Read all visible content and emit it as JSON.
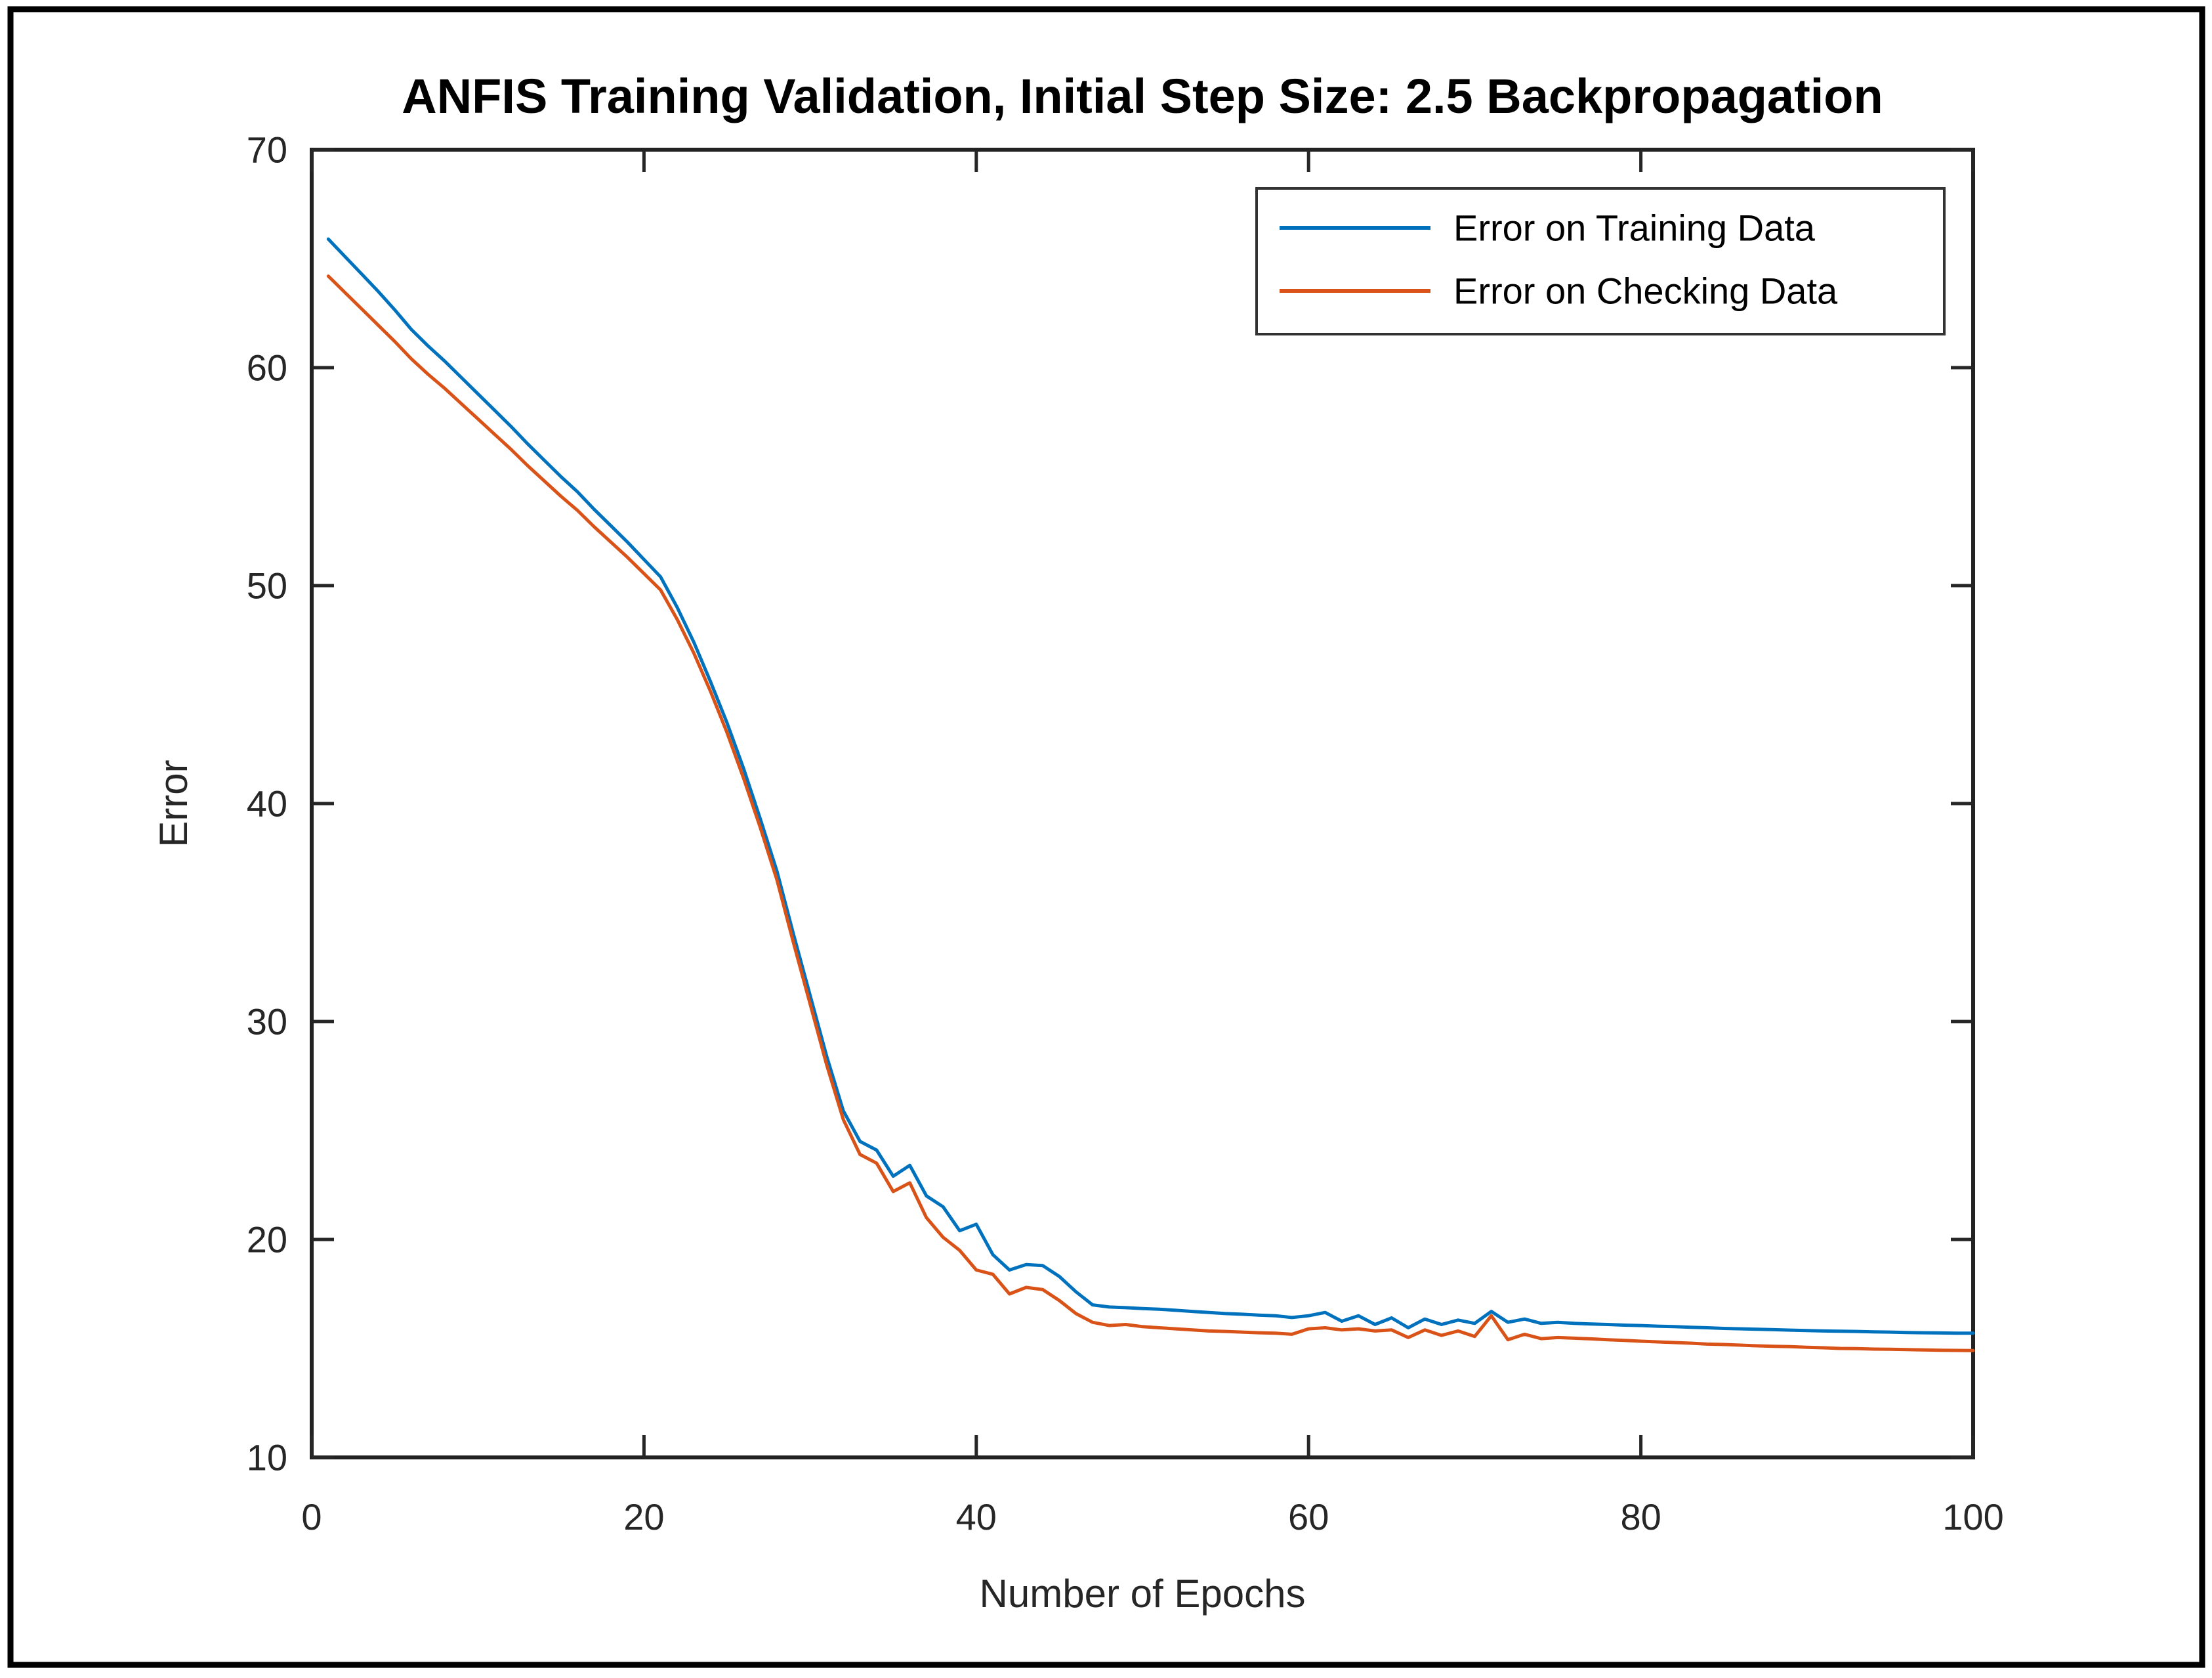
{
  "figure": {
    "background": "#ffffff",
    "outer_border_color": "#000000",
    "axis_color": "#262626",
    "plot_border_color": "#222222"
  },
  "chart_data": {
    "type": "line",
    "title": "ANFIS Training Validation, Initial Step Size: 2.5 Backpropagation",
    "xlabel": "Number of Epochs",
    "ylabel": "Error",
    "xlim": [
      0,
      100
    ],
    "ylim": [
      10,
      70
    ],
    "x_ticks": [
      0,
      20,
      40,
      60,
      80,
      100
    ],
    "y_ticks": [
      10,
      20,
      30,
      40,
      50,
      60,
      70
    ],
    "grid": false,
    "legend": {
      "position": "top-right",
      "border": true
    },
    "x_start": 1,
    "x_step": 1,
    "series": [
      {
        "name": "Error on Training Data",
        "color": "#0072BD",
        "values": [
          65.9,
          65.1,
          64.3,
          63.5,
          62.65,
          61.75,
          61.0,
          60.3,
          59.55,
          58.8,
          58.05,
          57.3,
          56.5,
          55.75,
          55.0,
          54.3,
          53.5,
          52.75,
          52.0,
          51.2,
          50.4,
          49.0,
          47.4,
          45.6,
          43.7,
          41.6,
          39.3,
          36.9,
          34.0,
          31.2,
          28.4,
          25.9,
          24.5,
          24.1,
          22.9,
          23.4,
          22.0,
          21.5,
          20.4,
          20.7,
          19.3,
          18.6,
          18.85,
          18.8,
          18.3,
          17.6,
          17.0,
          16.9,
          16.87,
          16.83,
          16.8,
          16.75,
          16.7,
          16.65,
          16.6,
          16.57,
          16.53,
          16.5,
          16.42,
          16.5,
          16.65,
          16.25,
          16.5,
          16.1,
          16.4,
          15.95,
          16.35,
          16.1,
          16.3,
          16.15,
          16.7,
          16.2,
          16.35,
          16.15,
          16.2,
          16.15,
          16.12,
          16.1,
          16.07,
          16.05,
          16.02,
          16.0,
          15.97,
          15.95,
          15.92,
          15.9,
          15.88,
          15.86,
          15.84,
          15.82,
          15.8,
          15.79,
          15.78,
          15.76,
          15.75,
          15.73,
          15.72,
          15.71,
          15.7,
          15.7
        ]
      },
      {
        "name": "Error on Checking Data",
        "color": "#D95319",
        "values": [
          64.2,
          63.45,
          62.7,
          61.95,
          61.2,
          60.4,
          59.7,
          59.05,
          58.35,
          57.65,
          56.95,
          56.25,
          55.5,
          54.8,
          54.1,
          53.45,
          52.7,
          52.0,
          51.3,
          50.55,
          49.8,
          48.45,
          46.9,
          45.15,
          43.25,
          41.15,
          38.9,
          36.5,
          33.6,
          30.8,
          28.0,
          25.5,
          23.9,
          23.5,
          22.2,
          22.6,
          21.0,
          20.1,
          19.5,
          18.6,
          18.4,
          17.5,
          17.8,
          17.7,
          17.2,
          16.6,
          16.2,
          16.05,
          16.1,
          16.0,
          15.95,
          15.9,
          15.85,
          15.8,
          15.78,
          15.75,
          15.72,
          15.7,
          15.65,
          15.9,
          15.95,
          15.85,
          15.9,
          15.8,
          15.85,
          15.5,
          15.85,
          15.6,
          15.8,
          15.55,
          16.5,
          15.4,
          15.65,
          15.45,
          15.5,
          15.47,
          15.44,
          15.4,
          15.37,
          15.33,
          15.3,
          15.27,
          15.24,
          15.2,
          15.18,
          15.15,
          15.12,
          15.1,
          15.08,
          15.05,
          15.03,
          15.0,
          14.99,
          14.97,
          14.96,
          14.95,
          14.93,
          14.92,
          14.91,
          14.9
        ]
      }
    ]
  }
}
